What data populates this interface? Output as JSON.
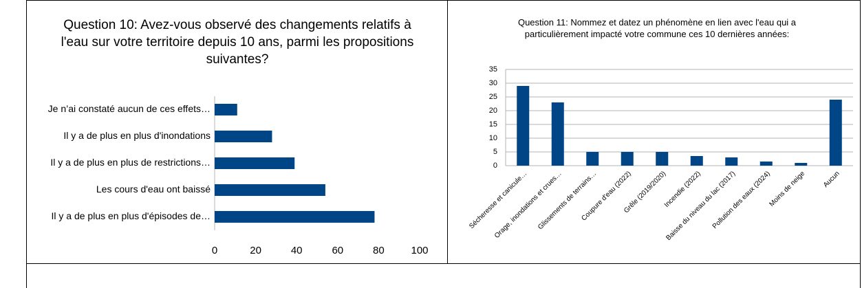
{
  "chart_data": [
    {
      "type": "hbar",
      "title": "Question 10: Avez-vous observé des changements relatifs à l'eau sur votre territoire depuis 10 ans, parmi les propositions suivantes?",
      "categories": [
        "Je n’ai constaté aucun de ces effets…",
        "Il y a de plus en plus d'inondations",
        "Il y a de plus en plus de restrictions…",
        "Les cours d'eau ont baissé",
        "Il y a de plus en plus d'épisodes de…"
      ],
      "values": [
        11,
        28,
        39,
        54,
        78
      ],
      "color": "#004586",
      "xlim": [
        0,
        100
      ],
      "xticks": [
        0,
        20,
        40,
        60,
        80,
        100
      ],
      "grid": false
    },
    {
      "type": "bar",
      "title": "Question 11: Nommez et datez un phénomène en lien avec l'eau qui a particulièrement impacté votre commune ces 10 dernières années:",
      "categories": [
        "Sécheresse et canicule…",
        "Orage, inondations et crues…",
        "Glissements de terrains…",
        "Coupure d'eau (2022)",
        "Grêle (2019/2020)",
        "Incendie (2022)",
        "Baisse du niveau du lac (2017)",
        "Pollution des eaux (2024)",
        "Moins de neige",
        "Aucun"
      ],
      "values": [
        29,
        23,
        5,
        5,
        5,
        3.5,
        3,
        1.5,
        1,
        24
      ],
      "color": "#004586",
      "ylim": [
        0,
        35
      ],
      "yticks": [
        0,
        5,
        10,
        15,
        20,
        25,
        30,
        35
      ],
      "grid": true
    }
  ]
}
